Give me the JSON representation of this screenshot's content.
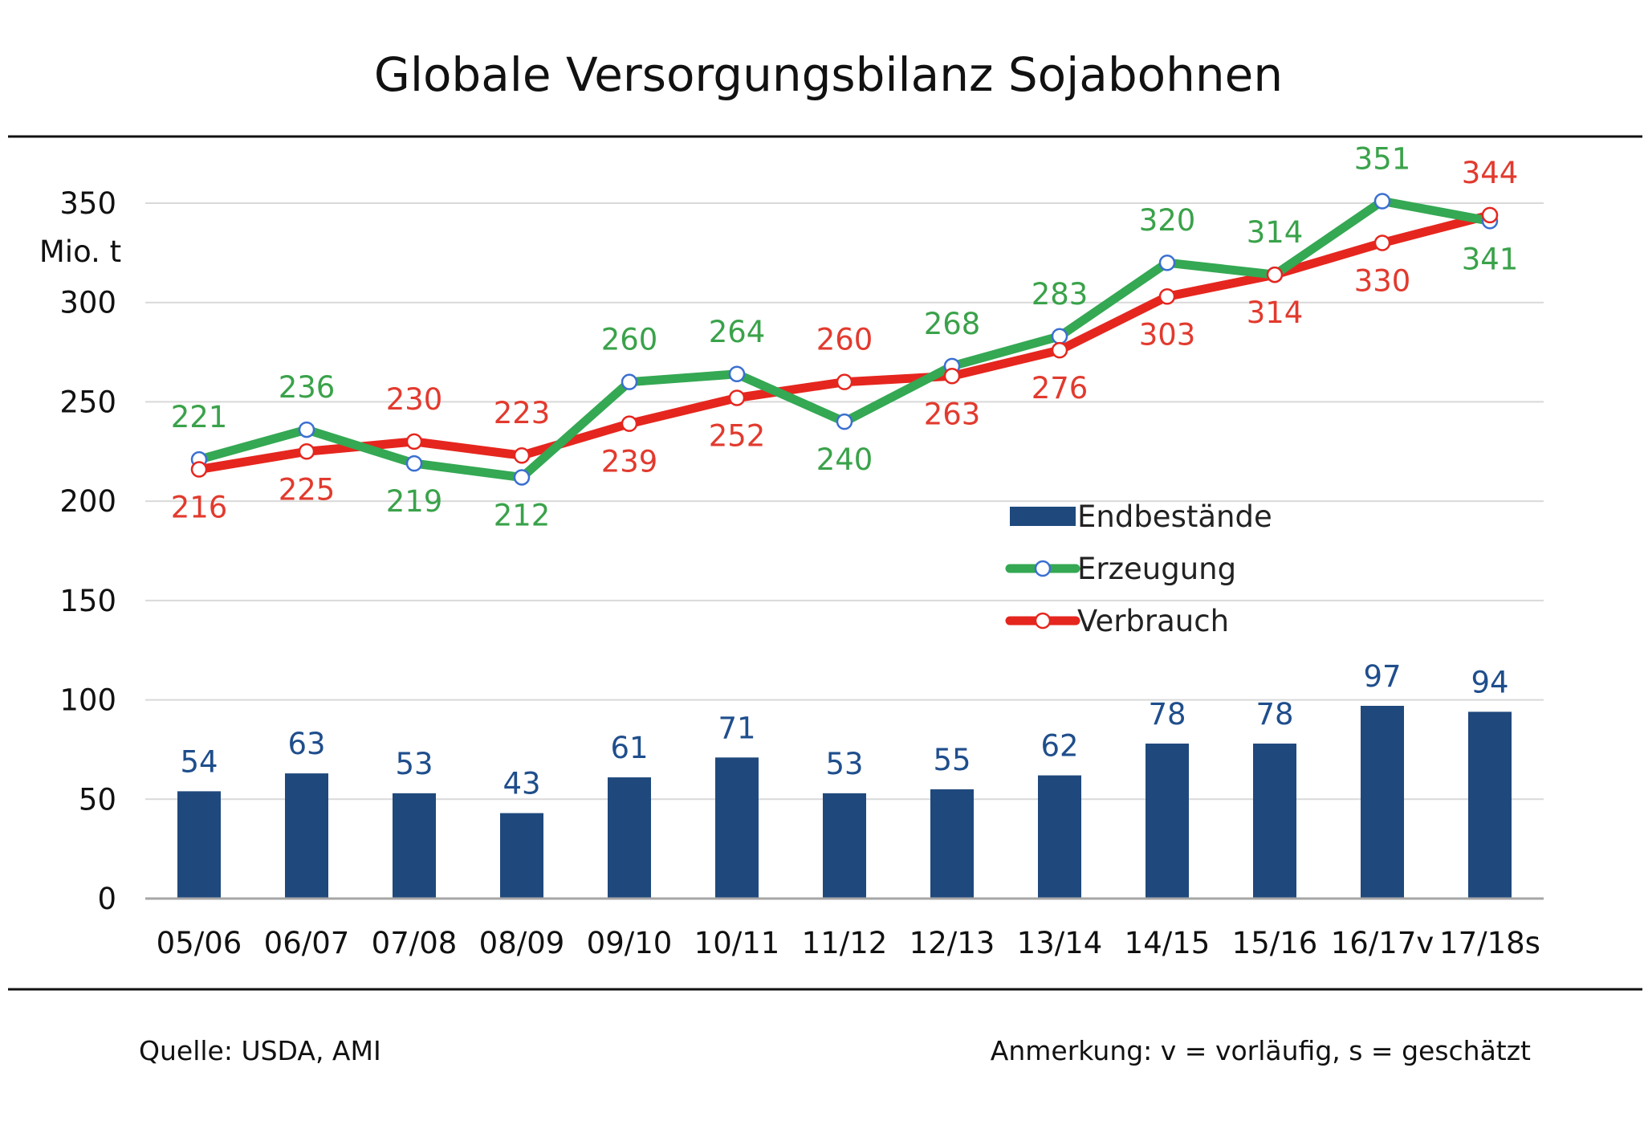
{
  "title": "Globale Versorgungsbilanz Sojabohnen",
  "unit_label": "Mio. t",
  "source": "Quelle: USDA, AMI",
  "note": "Anmerkung: v = vorläufig, s = geschätzt",
  "colors": {
    "bars": "#1f497d",
    "production": "#34a853",
    "consumption": "#e5261e",
    "production_labels": "#3aa24a",
    "consumption_labels": "#e23a2e",
    "bar_labels": "#1f4e8c",
    "grid": "#d9d9d9",
    "rule": "#111111"
  },
  "chart_data": {
    "type": "bar+line",
    "title": "Globale Versorgungsbilanz Sojabohnen",
    "ylabel": "Mio. t",
    "xlabel": "",
    "ylim": [
      0,
      350
    ],
    "yticks": [
      0,
      50,
      100,
      150,
      200,
      250,
      300,
      350
    ],
    "grid": true,
    "legend_position": "center-right",
    "categories": [
      "05/06",
      "06/07",
      "07/08",
      "08/09",
      "09/10",
      "10/11",
      "11/12",
      "12/13",
      "13/14",
      "14/15",
      "15/16",
      "16/17v",
      "17/18s"
    ],
    "series": [
      {
        "name": "Endbestände",
        "type": "bar",
        "values": [
          54,
          63,
          53,
          43,
          61,
          71,
          53,
          55,
          62,
          78,
          78,
          97,
          94
        ]
      },
      {
        "name": "Erzeugung",
        "type": "line",
        "values": [
          221,
          236,
          219,
          212,
          260,
          264,
          240,
          268,
          283,
          320,
          314,
          351,
          341
        ]
      },
      {
        "name": "Verbrauch",
        "type": "line",
        "values": [
          216,
          225,
          230,
          223,
          239,
          252,
          260,
          263,
          276,
          303,
          314,
          330,
          344
        ]
      }
    ]
  }
}
